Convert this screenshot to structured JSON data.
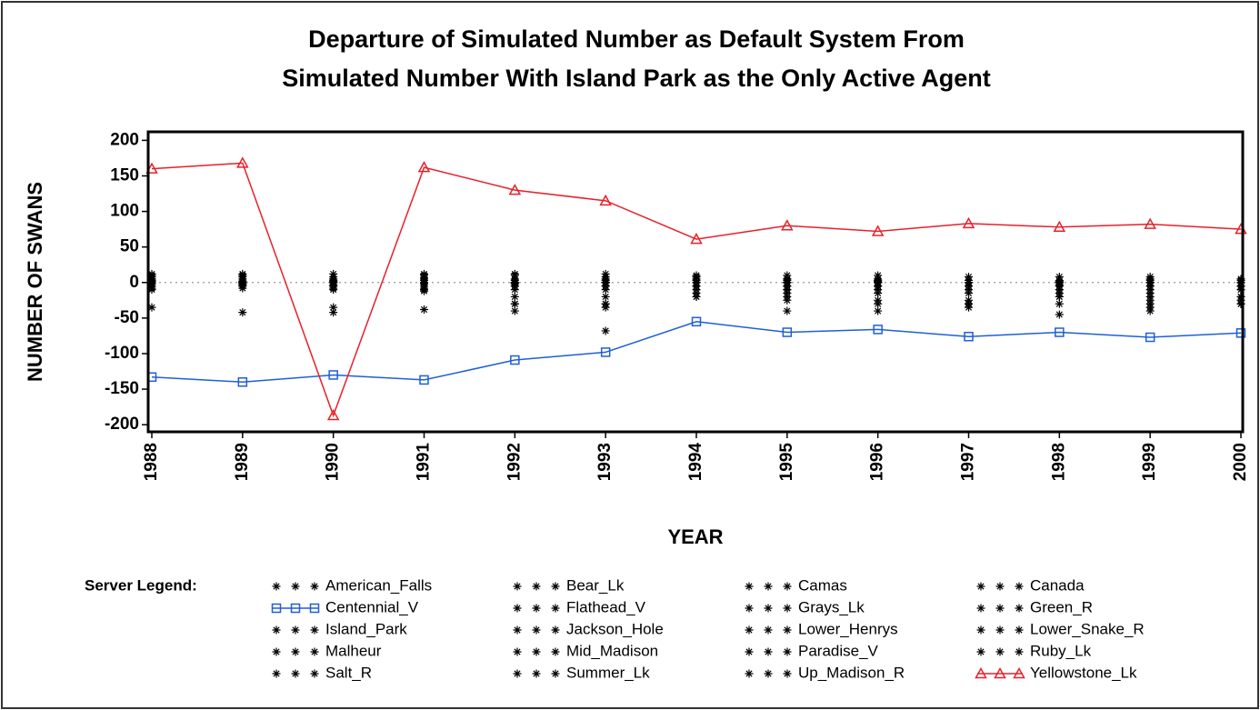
{
  "chart_data": {
    "type": "line",
    "title": [
      "Departure of Simulated Number as Default System From",
      "Simulated Number With Island Park as the Only Active Agent"
    ],
    "ylabel": "NUMBER OF SWANS",
    "xlabel": "YEAR",
    "legend_title": "Server Legend:",
    "x": [
      1988,
      1989,
      1990,
      1991,
      1992,
      1993,
      1994,
      1995,
      1996,
      1997,
      1998,
      1999,
      2000
    ],
    "xlim": [
      1988,
      2000
    ],
    "xticks": [
      1988,
      1989,
      1990,
      1991,
      1992,
      1993,
      1994,
      1995,
      1996,
      1997,
      1998,
      1999,
      2000
    ],
    "ylim": [
      -210,
      212
    ],
    "yticks": [
      -200,
      -150,
      -100,
      -50,
      0,
      50,
      100,
      150,
      200
    ],
    "refline": 0,
    "series": [
      {
        "name": "American_Falls",
        "color": "#000000",
        "marker": "star",
        "line": false,
        "values": [
          5,
          8,
          3,
          10,
          5,
          8,
          3,
          5,
          2,
          3,
          2,
          5,
          -5
        ]
      },
      {
        "name": "Bear_Lk",
        "color": "#000000",
        "marker": "star",
        "line": false,
        "values": [
          0,
          0,
          0,
          0,
          -10,
          -5,
          -5,
          -10,
          -5,
          -5,
          -3,
          -5,
          -10
        ]
      },
      {
        "name": "Camas",
        "color": "#000000",
        "marker": "star",
        "line": false,
        "values": [
          10,
          10,
          12,
          12,
          12,
          12,
          10,
          10,
          10,
          8,
          8,
          8,
          5
        ]
      },
      {
        "name": "Canada",
        "color": "#000000",
        "marker": "star",
        "line": false,
        "values": [
          -2,
          -3,
          -5,
          -2,
          -2,
          0,
          0,
          0,
          0,
          0,
          -5,
          0,
          0
        ]
      },
      {
        "name": "Centennial_V",
        "color": "#1f5fd6",
        "marker": "square",
        "line": true,
        "values": [
          -133,
          -140,
          -130,
          -137,
          -109,
          -98,
          -55,
          -70,
          -66,
          -76,
          -70,
          -77,
          -71
        ]
      },
      {
        "name": "Flathead_V",
        "color": "#000000",
        "marker": "star",
        "line": false,
        "values": [
          -5,
          -5,
          -10,
          -8,
          -20,
          -20,
          -15,
          -20,
          -15,
          -25,
          -20,
          -25,
          -20
        ]
      },
      {
        "name": "Grays_Lk",
        "color": "#000000",
        "marker": "star",
        "line": false,
        "values": [
          2,
          5,
          5,
          5,
          0,
          0,
          0,
          -5,
          -5,
          -10,
          -10,
          -10,
          -5
        ]
      },
      {
        "name": "Green_R",
        "color": "#000000",
        "marker": "star",
        "line": false,
        "values": [
          -35,
          -42,
          -42,
          -38,
          -40,
          -30,
          -20,
          -40,
          -40,
          -30,
          -45,
          -35,
          -30
        ]
      },
      {
        "name": "Island_Park",
        "color": "#000000",
        "marker": "star",
        "line": false,
        "values": [
          0,
          0,
          0,
          0,
          0,
          0,
          0,
          0,
          0,
          0,
          0,
          0,
          0
        ]
      },
      {
        "name": "Jackson_Hole",
        "color": "#000000",
        "marker": "star",
        "line": false,
        "values": [
          8,
          12,
          8,
          10,
          10,
          5,
          5,
          5,
          5,
          0,
          -5,
          0,
          -5
        ]
      },
      {
        "name": "Lower_Henrys",
        "color": "#000000",
        "marker": "star",
        "line": false,
        "values": [
          3,
          2,
          -3,
          3,
          -30,
          -68,
          -20,
          -25,
          -25,
          -35,
          -30,
          -30,
          -25
        ]
      },
      {
        "name": "Lower_Snake_R",
        "color": "#000000",
        "marker": "star",
        "line": false,
        "values": [
          -5,
          -2,
          -35,
          -5,
          -5,
          -35,
          -5,
          -5,
          -5,
          -30,
          -15,
          -20,
          -10
        ]
      },
      {
        "name": "Malheur",
        "color": "#000000",
        "marker": "star",
        "line": false,
        "values": [
          0,
          0,
          0,
          0,
          0,
          0,
          0,
          0,
          0,
          0,
          0,
          0,
          0
        ]
      },
      {
        "name": "Mid_Madison",
        "color": "#000000",
        "marker": "star",
        "line": false,
        "values": [
          12,
          2,
          2,
          7,
          3,
          3,
          8,
          3,
          3,
          3,
          3,
          3,
          3
        ]
      },
      {
        "name": "Paradise_V",
        "color": "#000000",
        "marker": "star",
        "line": false,
        "values": [
          -8,
          -8,
          -5,
          -10,
          -30,
          -30,
          -5,
          -10,
          -30,
          -5,
          -20,
          -5,
          -20
        ]
      },
      {
        "name": "Ruby_Lk",
        "color": "#000000",
        "marker": "star",
        "line": false,
        "values": [
          0,
          0,
          0,
          0,
          0,
          0,
          0,
          0,
          0,
          0,
          0,
          0,
          0
        ]
      },
      {
        "name": "Salt_R",
        "color": "#000000",
        "marker": "star",
        "line": false,
        "values": [
          -10,
          -5,
          -8,
          -12,
          -5,
          -10,
          -10,
          -15,
          -10,
          -15,
          -10,
          -15,
          -20
        ]
      },
      {
        "name": "Summer_Lk",
        "color": "#000000",
        "marker": "star",
        "line": false,
        "values": [
          0,
          0,
          0,
          0,
          0,
          0,
          0,
          0,
          0,
          0,
          0,
          0,
          0
        ]
      },
      {
        "name": "Up_Madison_R",
        "color": "#000000",
        "marker": "star",
        "line": false,
        "values": [
          5,
          0,
          0,
          0,
          0,
          -5,
          0,
          0,
          0,
          0,
          0,
          -40,
          -30
        ]
      },
      {
        "name": "Yellowstone_Lk",
        "color": "#e8202a",
        "marker": "triangle",
        "line": true,
        "values": [
          160,
          168,
          -187,
          162,
          130,
          115,
          61,
          80,
          72,
          83,
          78,
          82,
          75
        ]
      }
    ]
  }
}
